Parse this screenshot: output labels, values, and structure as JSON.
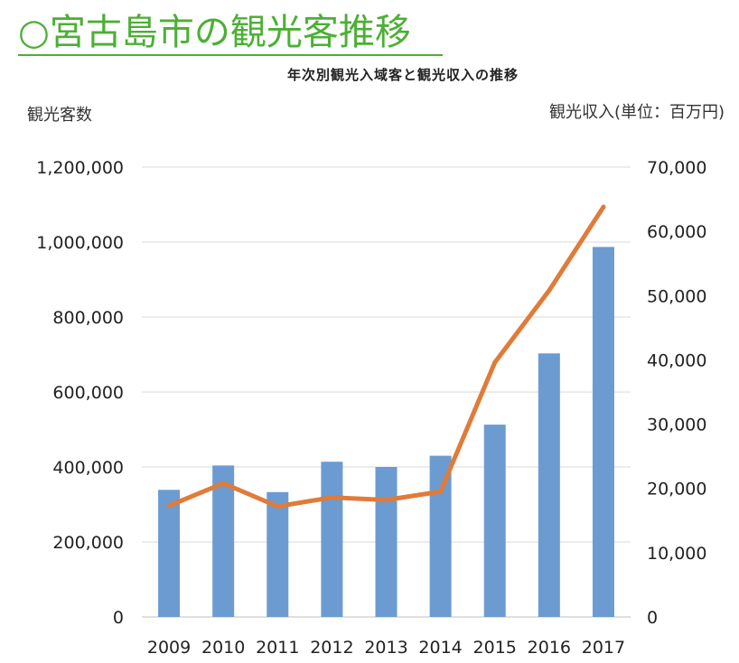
{
  "page": {
    "title": "○宮古島市の観光客推移"
  },
  "chart_data": {
    "type": "bar",
    "title": "年次別観光入域客と観光収入の推移",
    "ylabel": "観光客数",
    "y2label": "観光収入(単位：百万円)",
    "categories": [
      "2009",
      "2010",
      "2011",
      "2012",
      "2013",
      "2014",
      "2015",
      "2016",
      "2017"
    ],
    "ylim": [
      0,
      1200000
    ],
    "y_ticks": [
      0,
      200000,
      400000,
      600000,
      800000,
      1000000,
      1200000
    ],
    "y_tick_labels": [
      "0",
      "200,000",
      "400,000",
      "600,000",
      "800,000",
      "1,000,000",
      "1,200,000"
    ],
    "y2lim": [
      0,
      70000
    ],
    "y2_ticks": [
      0,
      10000,
      20000,
      30000,
      40000,
      50000,
      60000,
      70000
    ],
    "y2_tick_labels": [
      "0",
      "10,000",
      "20,000",
      "30,000",
      "40,000",
      "50,000",
      "60,000",
      "70,000"
    ],
    "series": [
      {
        "type": "bar",
        "axis": "left",
        "color": "#6b9bd1",
        "values": [
          339000,
          404000,
          333000,
          414000,
          400000,
          430000,
          513000,
          703000,
          987000
        ]
      },
      {
        "type": "line",
        "axis": "right",
        "color": "#e07b39",
        "values": [
          17300,
          20800,
          17200,
          18600,
          18200,
          19500,
          39600,
          50800,
          63800
        ]
      }
    ],
    "grid": true,
    "legend": "none"
  }
}
